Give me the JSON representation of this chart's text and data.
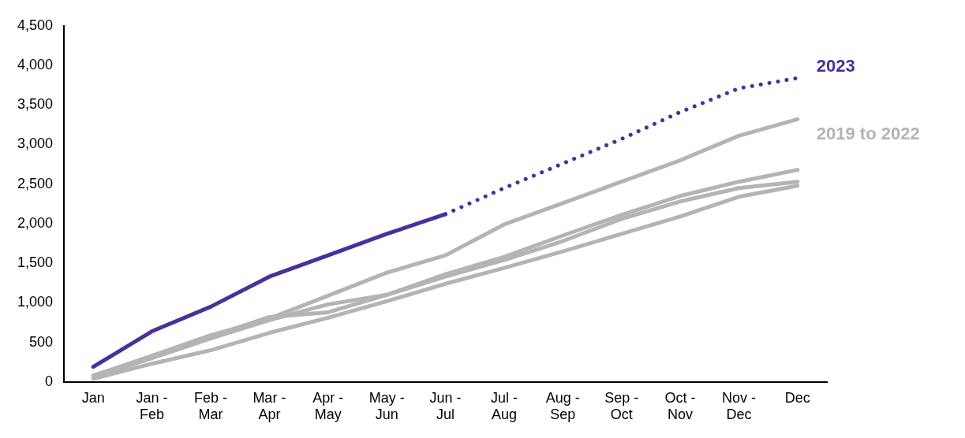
{
  "chart_data": {
    "type": "line",
    "categories": [
      "Jan",
      "Jan - Feb",
      "Feb - Mar",
      "Mar - Apr",
      "Apr - May",
      "May - Jun",
      "Jun - Jul",
      "Jul - Aug",
      "Aug - Sep",
      "Sep - Oct",
      "Oct - Nov",
      "Nov - Dec",
      "Dec"
    ],
    "series": [
      {
        "color": "#b4b4b4",
        "values": [
          80,
          330,
          590,
          800,
          1090,
          1380,
          1600,
          1990,
          2260,
          2530,
          2800,
          3110,
          3320
        ]
      },
      {
        "color": "#b4b4b4",
        "values": [
          80,
          320,
          570,
          820,
          880,
          1100,
          1360,
          1580,
          1850,
          2110,
          2350,
          2530,
          2680
        ]
      },
      {
        "color": "#b4b4b4",
        "values": [
          60,
          300,
          550,
          780,
          980,
          1100,
          1330,
          1540,
          1780,
          2060,
          2280,
          2450,
          2530
        ]
      },
      {
        "color": "#b4b4b4",
        "values": [
          40,
          230,
          400,
          620,
          810,
          1020,
          1240,
          1440,
          1650,
          1870,
          2090,
          2340,
          2480
        ]
      },
      {
        "color": "#48319a",
        "values": [
          190,
          640,
          950,
          1330,
          1600,
          1870,
          2120,
          null,
          null,
          null,
          null,
          null,
          null
        ]
      },
      {
        "color": "#48319a",
        "line_style": "dotted",
        "values": [
          null,
          null,
          null,
          null,
          null,
          null,
          2120,
          2450,
          2760,
          3070,
          3410,
          3710,
          3840
        ]
      }
    ],
    "ylim": [
      0,
      4500
    ],
    "yticks": [
      0,
      {
        "value": 500,
        "label": "500"
      },
      {
        "value": 1000,
        "label": "1,000"
      },
      {
        "value": 1500,
        "label": "1,500"
      },
      {
        "value": 2000,
        "label": "2,000"
      },
      {
        "value": 2500,
        "label": "2,500"
      },
      {
        "value": 3000,
        "label": "3,000"
      },
      {
        "value": 3500,
        "label": "3,500"
      },
      {
        "value": 4000,
        "label": "4,000"
      },
      {
        "value": 4500,
        "label": "4,500"
      }
    ],
    "grid": false,
    "legend": false,
    "marker": "none",
    "annotations": [
      "2023",
      "2019 to 2022"
    ]
  }
}
